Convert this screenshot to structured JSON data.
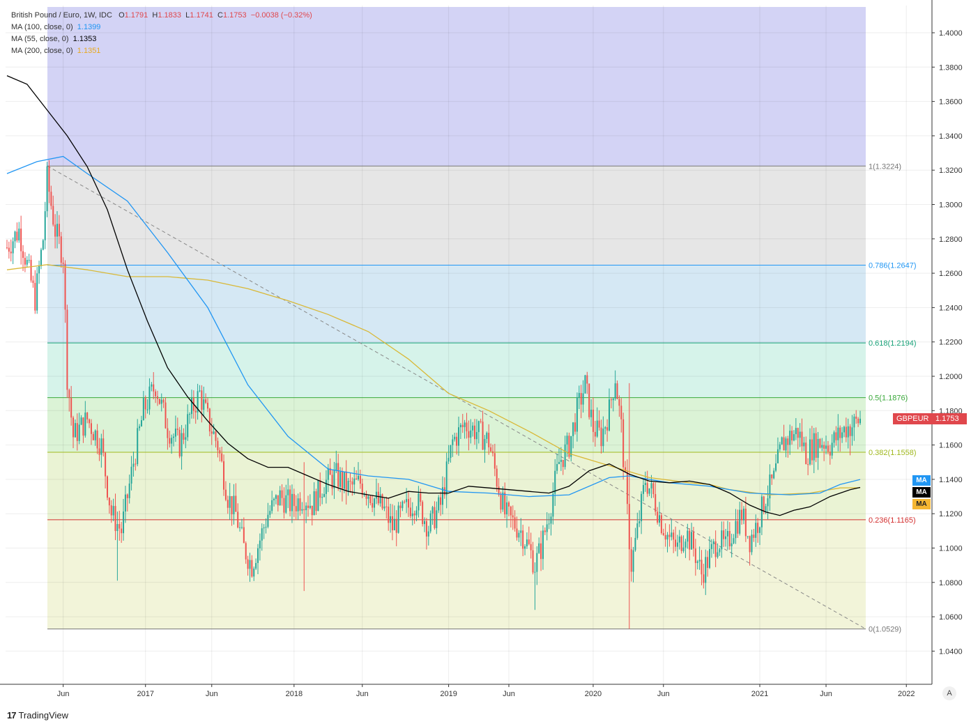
{
  "header": {
    "symbol": "British Pound / Euro, 1W, IDC",
    "open_label": "O",
    "open": "1.1791",
    "high_label": "H",
    "high": "1.1833",
    "low_label": "L",
    "low": "1.1741",
    "close_label": "C",
    "close": "1.1753",
    "change": "−0.0038 (−0.32%)",
    "ma100_label": "MA (100, close, 0)",
    "ma100_value": "1.1399",
    "ma55_label": "MA (55, close, 0)",
    "ma55_value": "1.1353",
    "ma200_label": "MA (200, close, 0)",
    "ma200_value": "1.1351"
  },
  "colors": {
    "up": "#26a69a",
    "down": "#ef5350",
    "ma100": "#2196f3",
    "ma55": "#000000",
    "ma200": "#d9b836",
    "badge_red": "#e0474c"
  },
  "price_badge": {
    "symbol": "GBPEUR",
    "value": "1.1753"
  },
  "ma_badges": [
    "MA",
    "MA",
    "MA"
  ],
  "auto_button": "A",
  "brand": "TradingView",
  "chart_data": {
    "type": "candlestick",
    "ylim": [
      1.03,
      1.415
    ],
    "y_ticks": [
      "1.4000",
      "1.3800",
      "1.3600",
      "1.3400",
      "1.3200",
      "1.3000",
      "1.2800",
      "1.2600",
      "1.2400",
      "1.2200",
      "1.2000",
      "1.1800",
      "1.1600",
      "1.1400",
      "1.1200",
      "1.1000",
      "1.0800",
      "1.0600",
      "1.0400"
    ],
    "x_ticks": [
      "Jun",
      "2017",
      "Jun",
      "2018",
      "Jun",
      "2019",
      "Jun",
      "2020",
      "Jun",
      "2021",
      "Jun",
      "2022"
    ],
    "fibonacci": [
      {
        "level": "1",
        "value": 1.3224,
        "label": "1(1.3224)"
      },
      {
        "level": "0.786",
        "value": 1.2647,
        "label": "0.786(1.2647)"
      },
      {
        "level": "0.618",
        "value": 1.2194,
        "label": "0.618(1.2194)"
      },
      {
        "level": "0.5",
        "value": 1.1876,
        "label": "0.5(1.1876)"
      },
      {
        "level": "0.382",
        "value": 1.1558,
        "label": "0.382(1.1558)"
      },
      {
        "level": "0.236",
        "value": 1.1165,
        "label": "0.236(1.1165)"
      },
      {
        "level": "0",
        "value": 1.0529,
        "label": "0(1.0529)"
      }
    ],
    "price_path": [
      [
        0,
        1.275
      ],
      [
        6,
        1.285
      ],
      [
        10,
        1.265
      ],
      [
        14,
        1.245
      ],
      [
        18,
        1.28
      ],
      [
        20,
        1.315
      ],
      [
        24,
        1.285
      ],
      [
        28,
        1.27
      ],
      [
        30,
        1.2
      ],
      [
        33,
        1.165
      ],
      [
        40,
        1.175
      ],
      [
        47,
        1.16
      ],
      [
        52,
        1.12
      ],
      [
        57,
        1.11
      ],
      [
        63,
        1.15
      ],
      [
        68,
        1.18
      ],
      [
        74,
        1.195
      ],
      [
        80,
        1.17
      ],
      [
        86,
        1.16
      ],
      [
        92,
        1.18
      ],
      [
        96,
        1.19
      ],
      [
        100,
        1.175
      ],
      [
        105,
        1.16
      ],
      [
        110,
        1.13
      ],
      [
        114,
        1.12
      ],
      [
        118,
        1.1
      ],
      [
        122,
        1.09
      ],
      [
        126,
        1.105
      ],
      [
        130,
        1.12
      ],
      [
        136,
        1.13
      ],
      [
        142,
        1.125
      ],
      [
        148,
        1.13
      ],
      [
        152,
        1.125
      ],
      [
        158,
        1.138
      ],
      [
        164,
        1.142
      ],
      [
        170,
        1.135
      ],
      [
        176,
        1.138
      ],
      [
        182,
        1.13
      ],
      [
        188,
        1.122
      ],
      [
        192,
        1.112
      ],
      [
        198,
        1.122
      ],
      [
        204,
        1.128
      ],
      [
        210,
        1.112
      ],
      [
        216,
        1.125
      ],
      [
        222,
        1.162
      ],
      [
        228,
        1.172
      ],
      [
        234,
        1.168
      ],
      [
        240,
        1.162
      ],
      [
        244,
        1.14
      ],
      [
        248,
        1.12
      ],
      [
        252,
        1.115
      ],
      [
        256,
        1.11
      ],
      [
        260,
        1.1
      ],
      [
        263,
        1.09
      ],
      [
        266,
        1.1
      ],
      [
        270,
        1.12
      ],
      [
        275,
        1.15
      ],
      [
        280,
        1.16
      ],
      [
        284,
        1.18
      ],
      [
        288,
        1.195
      ],
      [
        292,
        1.17
      ],
      [
        296,
        1.165
      ],
      [
        300,
        1.18
      ],
      [
        303,
        1.2
      ],
      [
        306,
        1.17
      ],
      [
        309,
        1.12
      ],
      [
        311,
        1.09
      ],
      [
        314,
        1.11
      ],
      [
        318,
        1.14
      ],
      [
        322,
        1.13
      ],
      [
        326,
        1.115
      ],
      [
        330,
        1.105
      ],
      [
        334,
        1.1
      ],
      [
        338,
        1.11
      ],
      [
        342,
        1.1
      ],
      [
        346,
        1.085
      ],
      [
        350,
        1.095
      ],
      [
        354,
        1.105
      ],
      [
        358,
        1.1
      ],
      [
        362,
        1.112
      ],
      [
        366,
        1.12
      ],
      [
        370,
        1.105
      ],
      [
        374,
        1.115
      ],
      [
        378,
        1.13
      ],
      [
        382,
        1.14
      ],
      [
        386,
        1.16
      ],
      [
        390,
        1.165
      ],
      [
        394,
        1.168
      ],
      [
        398,
        1.155
      ],
      [
        402,
        1.16
      ],
      [
        406,
        1.162
      ],
      [
        410,
        1.16
      ],
      [
        414,
        1.165
      ],
      [
        418,
        1.17
      ],
      [
        422,
        1.172
      ],
      [
        425,
        1.175
      ]
    ],
    "spikes": [
      {
        "week": 55,
        "low": 1.081
      },
      {
        "week": 148,
        "high": 1.15,
        "low": 1.075
      },
      {
        "week": 263,
        "low": 1.064
      },
      {
        "week": 310,
        "high": 1.196,
        "low": 1.053
      },
      {
        "week": 420,
        "low": 1.154
      }
    ],
    "ma200": [
      [
        0,
        1.262
      ],
      [
        20,
        1.265
      ],
      [
        40,
        1.262
      ],
      [
        60,
        1.258
      ],
      [
        80,
        1.258
      ],
      [
        100,
        1.256
      ],
      [
        120,
        1.251
      ],
      [
        140,
        1.244
      ],
      [
        160,
        1.236
      ],
      [
        180,
        1.226
      ],
      [
        200,
        1.21
      ],
      [
        220,
        1.19
      ],
      [
        240,
        1.18
      ],
      [
        260,
        1.168
      ],
      [
        280,
        1.155
      ],
      [
        300,
        1.148
      ],
      [
        320,
        1.141
      ],
      [
        340,
        1.138
      ],
      [
        350,
        1.137
      ],
      [
        360,
        1.134
      ],
      [
        380,
        1.131
      ],
      [
        400,
        1.132
      ],
      [
        415,
        1.135
      ],
      [
        425,
        1.1351
      ]
    ],
    "ma100": [
      [
        0,
        1.318
      ],
      [
        15,
        1.325
      ],
      [
        28,
        1.328
      ],
      [
        40,
        1.318
      ],
      [
        60,
        1.302
      ],
      [
        80,
        1.272
      ],
      [
        100,
        1.24
      ],
      [
        120,
        1.195
      ],
      [
        140,
        1.165
      ],
      [
        160,
        1.146
      ],
      [
        180,
        1.142
      ],
      [
        200,
        1.14
      ],
      [
        220,
        1.133
      ],
      [
        240,
        1.132
      ],
      [
        260,
        1.13
      ],
      [
        280,
        1.131
      ],
      [
        300,
        1.141
      ],
      [
        310,
        1.142
      ],
      [
        330,
        1.138
      ],
      [
        350,
        1.136
      ],
      [
        370,
        1.132
      ],
      [
        390,
        1.131
      ],
      [
        405,
        1.132
      ],
      [
        415,
        1.137
      ],
      [
        425,
        1.1399
      ]
    ],
    "ma55": [
      [
        0,
        1.375
      ],
      [
        10,
        1.37
      ],
      [
        20,
        1.355
      ],
      [
        30,
        1.34
      ],
      [
        40,
        1.322
      ],
      [
        50,
        1.297
      ],
      [
        60,
        1.262
      ],
      [
        70,
        1.232
      ],
      [
        80,
        1.205
      ],
      [
        90,
        1.188
      ],
      [
        100,
        1.174
      ],
      [
        110,
        1.161
      ],
      [
        120,
        1.152
      ],
      [
        130,
        1.147
      ],
      [
        140,
        1.147
      ],
      [
        150,
        1.142
      ],
      [
        160,
        1.137
      ],
      [
        170,
        1.133
      ],
      [
        180,
        1.131
      ],
      [
        190,
        1.129
      ],
      [
        200,
        1.133
      ],
      [
        210,
        1.132
      ],
      [
        220,
        1.132
      ],
      [
        230,
        1.136
      ],
      [
        240,
        1.135
      ],
      [
        250,
        1.134
      ],
      [
        260,
        1.133
      ],
      [
        270,
        1.132
      ],
      [
        280,
        1.136
      ],
      [
        290,
        1.145
      ],
      [
        300,
        1.149
      ],
      [
        310,
        1.143
      ],
      [
        320,
        1.139
      ],
      [
        330,
        1.138
      ],
      [
        340,
        1.139
      ],
      [
        350,
        1.137
      ],
      [
        360,
        1.132
      ],
      [
        370,
        1.125
      ],
      [
        378,
        1.121
      ],
      [
        385,
        1.119
      ],
      [
        392,
        1.122
      ],
      [
        400,
        1.124
      ],
      [
        410,
        1.13
      ],
      [
        420,
        1.134
      ],
      [
        425,
        1.1353
      ]
    ]
  }
}
